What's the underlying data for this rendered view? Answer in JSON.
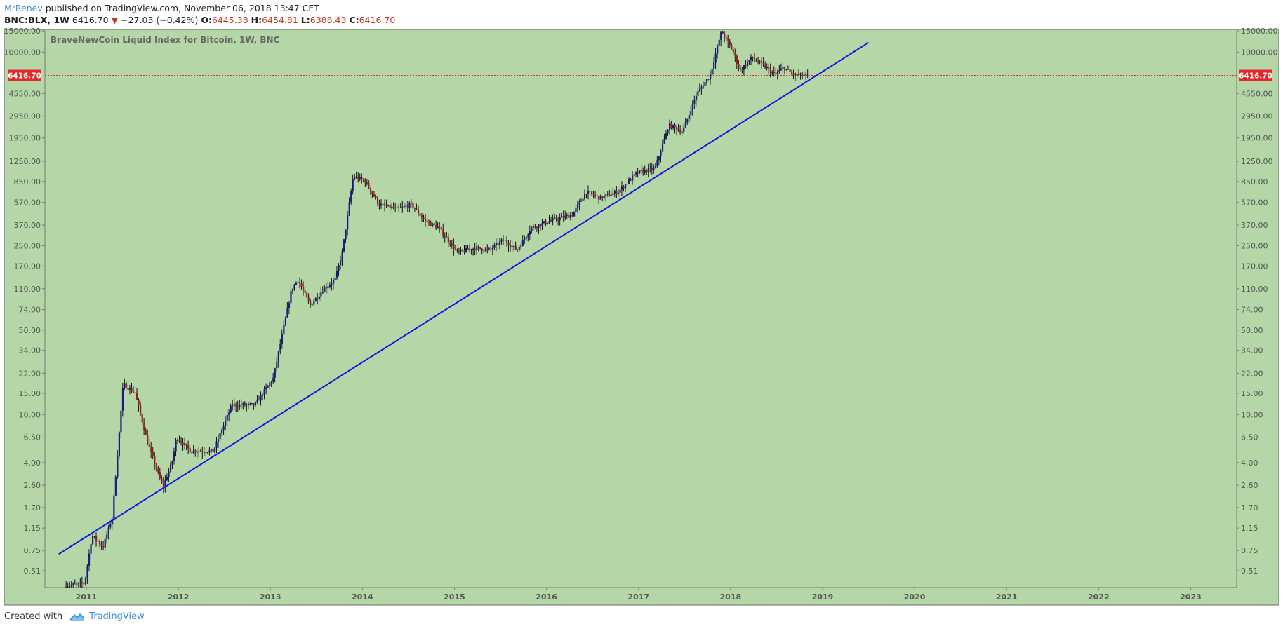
{
  "header": {
    "author": "MrRenev",
    "published": "published on TradingView.com, November 06, 2018 13:47 CET",
    "symbol": "BNC:BLX, 1W",
    "last": "6416.70",
    "change": "−27.03 (−0.42%)",
    "o_label": "O:",
    "o_value": "6445.38",
    "h_label": "H:",
    "h_value": "6454.81",
    "l_label": "L:",
    "l_value": "6388.43",
    "c_label": "C:",
    "c_value": "6416.70"
  },
  "footer": {
    "created_with": "Created with",
    "brand": "TradingView"
  },
  "colors": {
    "background": "#b5d6a7",
    "trendline": "#1515e0",
    "price_line": "#d63030",
    "up_candle": "#1a1a80",
    "down_candle": "#9a1c1c",
    "wick": "#111111",
    "axis_text": "#555555"
  },
  "chart_data": {
    "type": "candlestick",
    "title": "BraveNewCoin Liquid Index for Bitcoin, 1W, BNC",
    "y_scale": "log",
    "ylim": [
      0.37,
      15000
    ],
    "xlim": [
      2010.55,
      2023.5
    ],
    "y_ticks": [
      "15000.00",
      "10000.00",
      "4550.00",
      "2950.00",
      "1950.00",
      "1250.00",
      "850.00",
      "570.00",
      "370.00",
      "250.00",
      "170.00",
      "110.00",
      "74.00",
      "50.00",
      "34.00",
      "22.00",
      "15.00",
      "10.00",
      "6.50",
      "4.00",
      "2.60",
      "1.70",
      "1.15",
      "0.75",
      "0.51"
    ],
    "x_ticks": [
      "2011",
      "2012",
      "2013",
      "2014",
      "2015",
      "2016",
      "2017",
      "2018",
      "2019",
      "2020",
      "2021",
      "2022",
      "2023"
    ],
    "current_price": 6416.7,
    "current_price_label": "6416.70",
    "trendline": {
      "start": [
        2010.7,
        0.7
      ],
      "end": [
        2019.5,
        12000
      ]
    },
    "price_path": [
      [
        2010.78,
        0.38
      ],
      [
        2011.0,
        0.4
      ],
      [
        2011.08,
        1.0
      ],
      [
        2011.2,
        0.8
      ],
      [
        2011.3,
        1.4
      ],
      [
        2011.42,
        18
      ],
      [
        2011.55,
        15
      ],
      [
        2011.68,
        6
      ],
      [
        2011.85,
        2.5
      ],
      [
        2011.95,
        4
      ],
      [
        2012.0,
        6.5
      ],
      [
        2012.15,
        5
      ],
      [
        2012.4,
        5
      ],
      [
        2012.6,
        12
      ],
      [
        2012.85,
        12
      ],
      [
        2013.05,
        20
      ],
      [
        2013.25,
        110
      ],
      [
        2013.32,
        130
      ],
      [
        2013.45,
        80
      ],
      [
        2013.6,
        110
      ],
      [
        2013.72,
        130
      ],
      [
        2013.8,
        220
      ],
      [
        2013.92,
        950
      ],
      [
        2014.05,
        850
      ],
      [
        2014.2,
        550
      ],
      [
        2014.4,
        500
      ],
      [
        2014.55,
        550
      ],
      [
        2014.7,
        400
      ],
      [
        2014.85,
        350
      ],
      [
        2015.05,
        220
      ],
      [
        2015.25,
        240
      ],
      [
        2015.4,
        230
      ],
      [
        2015.55,
        280
      ],
      [
        2015.7,
        230
      ],
      [
        2015.85,
        350
      ],
      [
        2016.05,
        400
      ],
      [
        2016.3,
        450
      ],
      [
        2016.45,
        700
      ],
      [
        2016.6,
        620
      ],
      [
        2016.8,
        700
      ],
      [
        2017.0,
        1000
      ],
      [
        2017.2,
        1100
      ],
      [
        2017.35,
        2500
      ],
      [
        2017.5,
        2200
      ],
      [
        2017.65,
        4500
      ],
      [
        2017.8,
        6500
      ],
      [
        2017.92,
        15000
      ],
      [
        2018.05,
        10000
      ],
      [
        2018.12,
        7000
      ],
      [
        2018.25,
        9000
      ],
      [
        2018.4,
        7500
      ],
      [
        2018.5,
        6500
      ],
      [
        2018.6,
        7500
      ],
      [
        2018.7,
        6500
      ],
      [
        2018.85,
        6416.7
      ]
    ]
  }
}
